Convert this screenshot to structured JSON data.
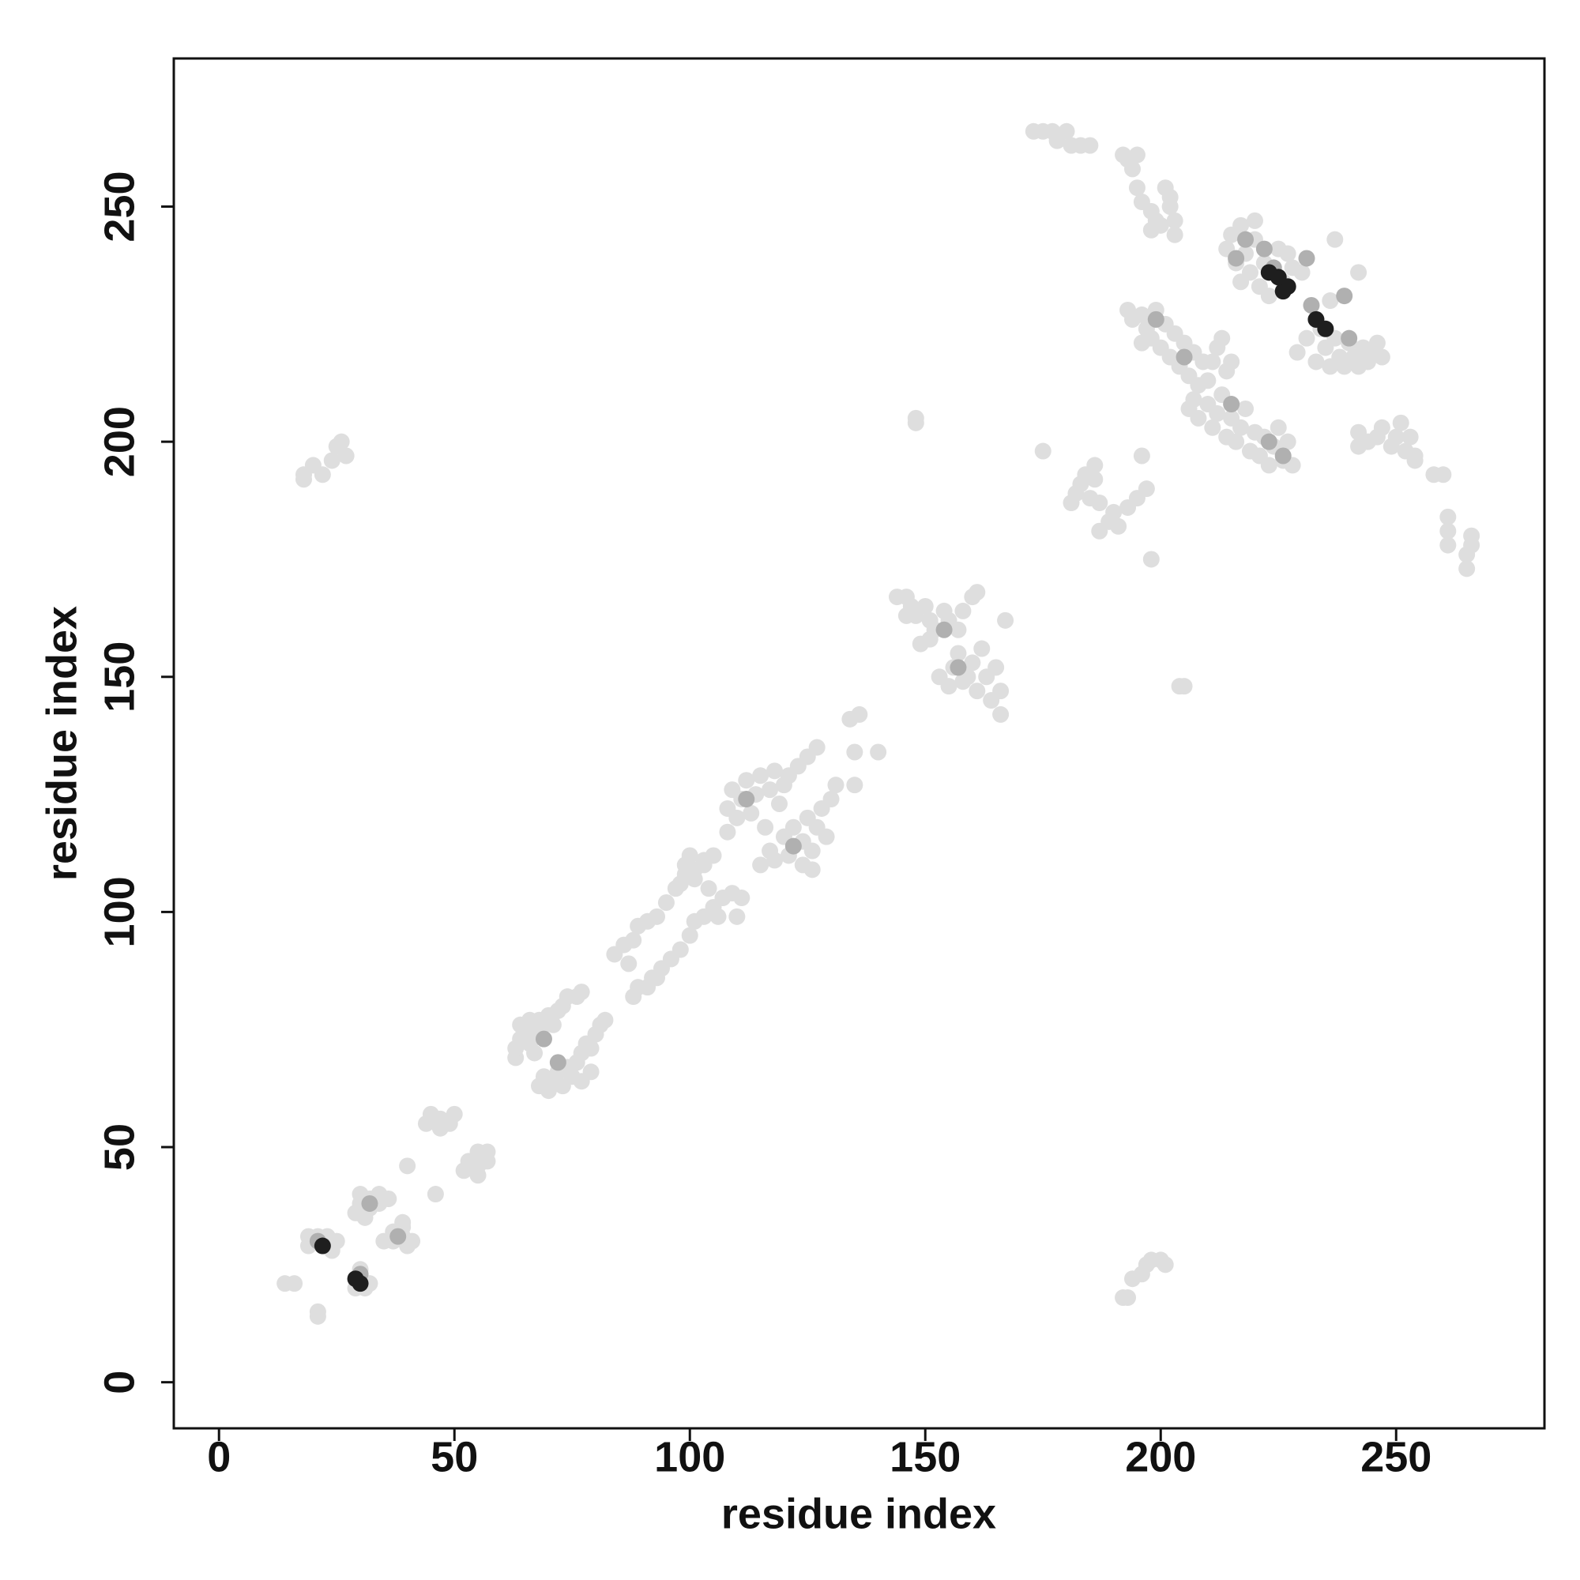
{
  "chart_data": {
    "type": "scatter",
    "xlabel": "residue index",
    "ylabel": "residue index",
    "xlim": [
      -9.6,
      281.5
    ],
    "ylim": [
      -9.8,
      281.5
    ],
    "xticks": [
      0,
      50,
      100,
      150,
      200,
      250
    ],
    "yticks": [
      0,
      50,
      100,
      150,
      200,
      250
    ],
    "grid": false,
    "series": [
      {
        "color": "#dedede",
        "x": [
          14,
          16,
          21,
          21,
          19,
          19,
          21,
          23,
          25,
          24,
          29,
          31,
          30,
          32,
          29,
          30,
          30,
          32,
          32,
          34,
          34,
          36,
          31,
          35,
          37,
          37,
          39,
          39,
          40,
          41,
          39,
          40,
          46,
          44,
          45,
          47,
          47,
          49,
          50,
          52,
          53,
          55,
          55,
          57,
          57,
          55,
          63,
          63,
          64,
          64,
          66,
          66,
          66,
          68,
          68,
          69,
          70,
          71,
          72,
          73,
          74,
          76,
          77,
          67,
          68,
          69,
          70,
          71,
          72,
          73,
          74,
          75,
          76,
          77,
          77,
          78,
          79,
          80,
          81,
          82,
          79,
          84,
          86,
          88,
          89,
          91,
          93,
          95,
          97,
          99,
          101,
          103,
          105,
          87,
          88,
          89,
          91,
          92,
          94,
          96,
          98,
          100,
          101,
          103,
          105,
          107,
          109,
          111,
          110,
          106,
          93,
          98,
          99,
          101,
          103,
          104,
          100,
          108,
          108,
          109,
          110,
          111,
          112,
          113,
          114,
          115,
          117,
          118,
          120,
          121,
          123,
          125,
          127,
          119,
          116,
          115,
          117,
          118,
          120,
          121,
          122,
          124,
          124,
          125,
          126,
          127,
          128,
          130,
          131,
          126,
          129,
          134,
          135,
          135,
          140,
          136,
          148,
          148,
          144,
          146,
          147,
          148,
          150,
          151,
          152,
          154,
          155,
          157,
          158,
          146,
          160,
          161,
          149,
          151,
          153,
          155,
          156,
          157,
          159,
          160,
          161,
          162,
          163,
          164,
          165,
          166,
          166,
          158,
          167,
          204,
          205,
          175,
          181,
          182,
          183,
          184,
          186,
          186,
          187,
          185,
          196,
          187,
          189,
          190,
          191,
          193,
          195,
          197,
          198,
          18,
          18,
          20,
          22,
          24,
          25,
          26,
          27,
          193,
          194,
          196,
          197,
          198,
          200,
          201,
          192,
          173,
          175,
          177,
          178,
          180,
          181,
          183,
          185,
          192,
          193,
          194,
          195,
          195,
          196,
          198,
          198,
          200,
          201,
          202,
          203,
          203,
          202,
          199,
          214,
          215,
          216,
          217,
          218,
          219,
          220,
          220,
          221,
          222,
          224,
          225,
          226,
          228,
          230,
          217,
          223,
          227,
          193,
          194,
          196,
          197,
          198,
          199,
          200,
          201,
          202,
          203,
          204,
          205,
          206,
          207,
          208,
          209,
          210,
          211,
          212,
          213,
          196,
          206,
          207,
          208,
          210,
          211,
          212,
          213,
          214,
          215,
          216,
          217,
          218,
          219,
          220,
          221,
          222,
          223,
          224,
          225,
          226,
          227,
          228,
          214,
          215,
          229,
          231,
          233,
          234,
          235,
          236,
          237,
          238,
          239,
          240,
          241,
          242,
          243,
          244,
          245,
          246,
          247,
          236,
          237,
          242,
          242,
          242,
          244,
          246,
          247,
          249,
          250,
          251,
          252,
          253,
          254,
          254,
          258,
          260,
          261,
          261,
          261,
          265,
          265,
          266,
          266
        ],
        "y": [
          21,
          21,
          14,
          15,
          29,
          31,
          31,
          31,
          30,
          28,
          20,
          20,
          24,
          21,
          36,
          38,
          40,
          37,
          39,
          38,
          40,
          39,
          35,
          30,
          30,
          32,
          31,
          33,
          29,
          30,
          34,
          46,
          40,
          55,
          57,
          54,
          56,
          55,
          57,
          45,
          47,
          46,
          49,
          47,
          49,
          44,
          69,
          71,
          73,
          76,
          72,
          75,
          77,
          74,
          77,
          76,
          78,
          76,
          79,
          80,
          82,
          82,
          83,
          70,
          63,
          65,
          62,
          64,
          66,
          63,
          67,
          65,
          68,
          64,
          70,
          72,
          71,
          74,
          76,
          77,
          66,
          91,
          93,
          94,
          97,
          98,
          99,
          102,
          105,
          108,
          109,
          111,
          112,
          89,
          82,
          84,
          84,
          86,
          88,
          90,
          92,
          95,
          98,
          99,
          101,
          103,
          104,
          103,
          99,
          99,
          86,
          106,
          110,
          107,
          110,
          105,
          112,
          117,
          122,
          126,
          120,
          124,
          128,
          121,
          125,
          129,
          126,
          130,
          127,
          129,
          131,
          133,
          135,
          123,
          118,
          110,
          113,
          111,
          116,
          112,
          118,
          110,
          115,
          120,
          113,
          118,
          122,
          124,
          127,
          109,
          116,
          141,
          134,
          127,
          134,
          142,
          204,
          205,
          167,
          167,
          165,
          163,
          165,
          162,
          160,
          164,
          162,
          160,
          164,
          163,
          167,
          168,
          157,
          158,
          150,
          148,
          152,
          155,
          150,
          153,
          147,
          156,
          150,
          145,
          152,
          142,
          147,
          149,
          162,
          148,
          148,
          198,
          187,
          189,
          191,
          193,
          192,
          195,
          187,
          188,
          197,
          181,
          183,
          185,
          182,
          186,
          188,
          190,
          175,
          192,
          193,
          195,
          193,
          196,
          199,
          200,
          197,
          18,
          22,
          23,
          25,
          26,
          26,
          25,
          18,
          266,
          266,
          266,
          264,
          266,
          263,
          263,
          263,
          261,
          260,
          258,
          261,
          254,
          251,
          249,
          245,
          246,
          254,
          250,
          247,
          244,
          252,
          247,
          241,
          244,
          238,
          246,
          240,
          236,
          243,
          247,
          233,
          238,
          236,
          241,
          234,
          237,
          236,
          234,
          231,
          240,
          228,
          226,
          227,
          224,
          222,
          228,
          220,
          225,
          218,
          223,
          216,
          221,
          214,
          219,
          212,
          217,
          213,
          217,
          220,
          222,
          221,
          207,
          209,
          205,
          208,
          203,
          206,
          210,
          201,
          205,
          200,
          203,
          207,
          198,
          202,
          197,
          201,
          195,
          199,
          203,
          196,
          200,
          195,
          215,
          217,
          219,
          222,
          217,
          224,
          220,
          216,
          222,
          218,
          216,
          221,
          218,
          216,
          220,
          217,
          219,
          221,
          218,
          230,
          243,
          236,
          199,
          202,
          200,
          201,
          203,
          199,
          201,
          204,
          198,
          201,
          197,
          196,
          193,
          193,
          181,
          184,
          178,
          173,
          176,
          178,
          180
        ]
      },
      {
        "color": "#b0b0b0",
        "x": [
          21,
          30,
          32,
          38,
          69,
          72,
          112,
          122,
          154,
          157,
          216,
          218,
          222,
          224,
          231,
          239,
          233,
          240,
          232,
          199,
          205,
          215,
          223,
          226
        ],
        "y": [
          30,
          23,
          38,
          31,
          73,
          68,
          124,
          114,
          160,
          152,
          239,
          243,
          241,
          237,
          239,
          231,
          226,
          222,
          229,
          226,
          218,
          208,
          200,
          197
        ]
      },
      {
        "color": "#1e1e1e",
        "x": [
          22,
          29,
          30,
          223,
          226,
          227,
          233,
          235,
          225
        ],
        "y": [
          29,
          22,
          21,
          236,
          232,
          233,
          226,
          224,
          235
        ]
      }
    ]
  }
}
